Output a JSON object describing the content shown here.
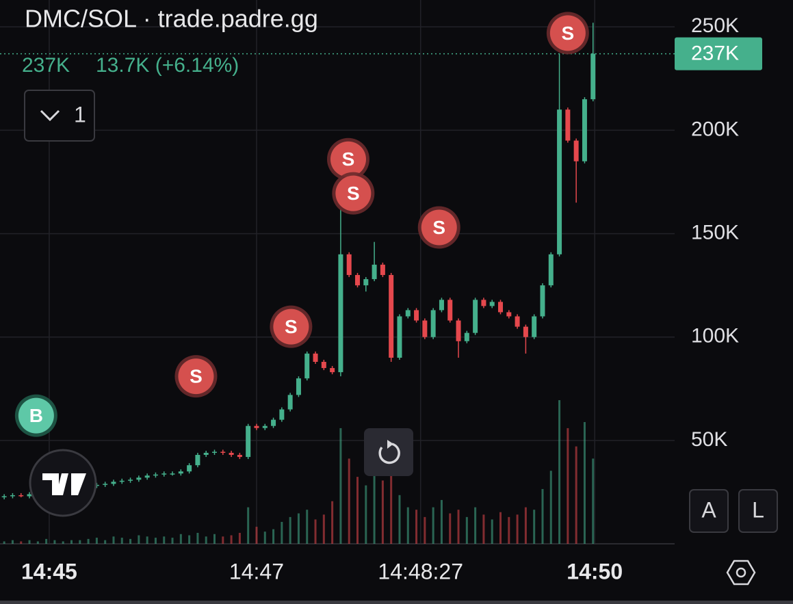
{
  "chart_data": {
    "type": "candlestick",
    "title": "DMC/SOL · trade.padre.gg",
    "legend_price": "237K",
    "legend_change": "13.7K (+6.14%)",
    "interval": "1",
    "up_color": "#45b08c",
    "down_color": "#e5484d",
    "xlim": [
      -0.5,
      79.7
    ],
    "ylim": [
      0,
      263000
    ],
    "xticks": [
      {
        "value": 5.35,
        "label": "14:45",
        "bold": true
      },
      {
        "value": 30,
        "label": "14:47"
      },
      {
        "value": 49.5,
        "label": "14:48:27"
      },
      {
        "value": 70.2,
        "label": "14:50",
        "bold": true
      }
    ],
    "yticks": [
      {
        "value": 50000,
        "label": "50K"
      },
      {
        "value": 100000,
        "label": "100K"
      },
      {
        "value": 150000,
        "label": "150K"
      },
      {
        "value": 200000,
        "label": "200K"
      },
      {
        "value": 250000,
        "label": "250K"
      }
    ],
    "last_price": {
      "value": 237000,
      "label": "237K"
    },
    "open": [
      22500,
      23000,
      23500,
      23000,
      24000,
      24500,
      25000,
      26000,
      26500,
      27000,
      27500,
      28000,
      28500,
      29000,
      30000,
      30500,
      31000,
      32000,
      33000,
      33500,
      34000,
      34000,
      35000,
      38000,
      43000,
      44000,
      44500,
      44000,
      43000,
      42000,
      57000,
      56000,
      57000,
      60000,
      65000,
      72000,
      80000,
      92000,
      88000,
      85000,
      83000,
      140000,
      130000,
      125000,
      128000,
      135000,
      130000,
      90000,
      110000,
      113000,
      108000,
      100000,
      113000,
      118000,
      108000,
      98000,
      102000,
      118000,
      115000,
      117000,
      112000,
      110000,
      105000,
      100000,
      110000,
      125000,
      140000,
      210000,
      195000,
      185000,
      215000
    ],
    "high": [
      24000,
      24500,
      24500,
      25000,
      25500,
      26000,
      27000,
      27500,
      28000,
      28500,
      29000,
      29500,
      30000,
      31000,
      31500,
      32000,
      33000,
      34000,
      34500,
      35000,
      35000,
      36000,
      39000,
      44000,
      45000,
      45500,
      45500,
      45000,
      44000,
      58000,
      58000,
      58000,
      61000,
      66000,
      73000,
      81000,
      93000,
      93000,
      89000,
      86000,
      162000,
      141000,
      131000,
      129000,
      146000,
      136000,
      131000,
      111000,
      114000,
      114000,
      109000,
      114000,
      119000,
      119000,
      109000,
      103000,
      119000,
      119000,
      118000,
      118000,
      113000,
      111000,
      106000,
      111000,
      126000,
      141000,
      237000,
      211000,
      196000,
      216000,
      252000
    ],
    "low": [
      21500,
      22000,
      22500,
      22000,
      23000,
      23500,
      24000,
      25000,
      25500,
      26000,
      26500,
      27000,
      27500,
      28000,
      29000,
      29500,
      30000,
      31000,
      32000,
      32500,
      33000,
      33000,
      34000,
      37000,
      42000,
      43000,
      43000,
      42000,
      41000,
      41000,
      55000,
      55000,
      56000,
      59000,
      64000,
      71000,
      79000,
      87000,
      84000,
      82000,
      81000,
      129000,
      124000,
      122000,
      127000,
      129000,
      88000,
      89000,
      109000,
      107000,
      99000,
      99000,
      112000,
      107000,
      90000,
      97000,
      101000,
      114000,
      114000,
      111000,
      109000,
      104000,
      92000,
      99000,
      109000,
      124000,
      139000,
      194000,
      165000,
      184000,
      214000
    ],
    "close": [
      23000,
      23500,
      23000,
      24000,
      24500,
      25000,
      26000,
      26500,
      27000,
      27500,
      28000,
      28500,
      29000,
      30000,
      30500,
      31000,
      32000,
      33000,
      33500,
      34000,
      34000,
      35000,
      38000,
      43000,
      44000,
      44500,
      44000,
      43000,
      42000,
      57000,
      56000,
      57000,
      60000,
      65000,
      72000,
      80000,
      92000,
      88000,
      85000,
      83000,
      140000,
      130000,
      125000,
      128000,
      135000,
      130000,
      90000,
      110000,
      113000,
      108000,
      100000,
      113000,
      118000,
      108000,
      98000,
      102000,
      118000,
      115000,
      117000,
      112000,
      110000,
      105000,
      100000,
      110000,
      125000,
      140000,
      210000,
      195000,
      185000,
      215000,
      237000
    ],
    "volume": [
      2,
      3,
      2,
      3,
      2,
      4,
      3,
      2,
      3,
      3,
      4,
      5,
      3,
      6,
      5,
      4,
      7,
      6,
      5,
      6,
      5,
      8,
      7,
      9,
      6,
      8,
      6,
      7,
      9,
      30,
      14,
      10,
      12,
      18,
      22,
      25,
      28,
      20,
      24,
      35,
      95,
      70,
      55,
      48,
      60,
      52,
      75,
      40,
      30,
      28,
      22,
      30,
      36,
      25,
      28,
      22,
      30,
      24,
      20,
      26,
      22,
      24,
      30,
      28,
      45,
      60,
      118,
      95,
      80,
      100,
      70
    ],
    "markers": [
      {
        "label": "B",
        "x": 3.8,
        "y": 62000
      },
      {
        "label": "S",
        "x": 22.8,
        "y": 81000
      },
      {
        "label": "S",
        "x": 34.1,
        "y": 105000
      },
      {
        "label": "S",
        "x": 40.9,
        "y": 186000
      },
      {
        "label": "S",
        "x": 41.5,
        "y": 169500
      },
      {
        "label": "S",
        "x": 51.7,
        "y": 153000
      },
      {
        "label": "S",
        "x": 67,
        "y": 247000
      }
    ],
    "buttons": [
      "A",
      "L"
    ]
  }
}
